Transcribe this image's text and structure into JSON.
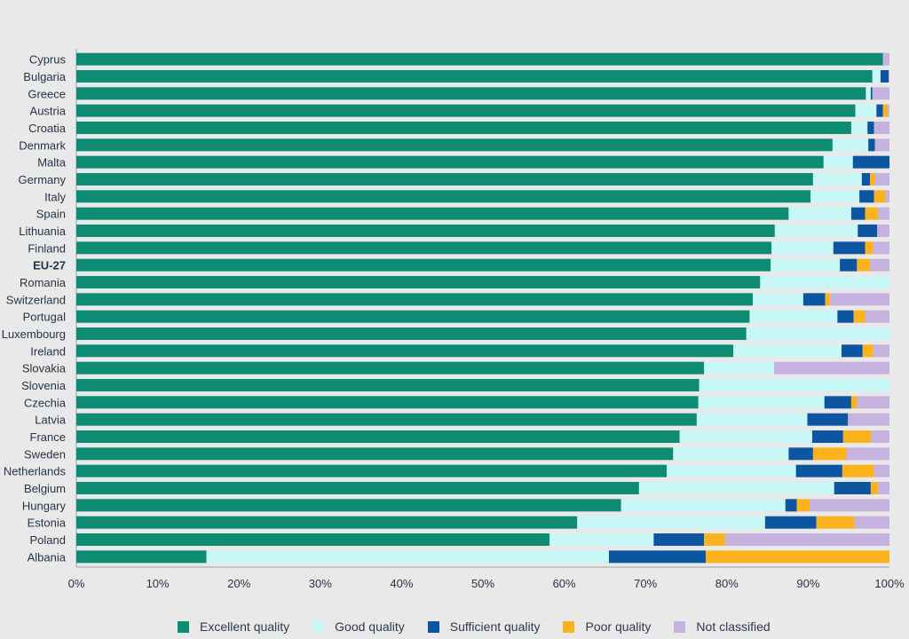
{
  "chart_data": {
    "type": "bar",
    "orientation": "horizontal",
    "stacked": true,
    "xlim": [
      0,
      100
    ],
    "xticks": [
      "0%",
      "10%",
      "20%",
      "30%",
      "40%",
      "50%",
      "60%",
      "70%",
      "80%",
      "90%",
      "100%"
    ],
    "categories": [
      "Cyprus",
      "Bulgaria",
      "Greece",
      "Austria",
      "Croatia",
      "Denmark",
      "Malta",
      "Germany",
      "Italy",
      "Spain",
      "Lithuania",
      "Finland",
      "EU-27",
      "Romania",
      "Switzerland",
      "Portugal",
      "Luxembourg",
      "Ireland",
      "Slovakia",
      "Slovenia",
      "Czechia",
      "Latvia",
      "France",
      "Sweden",
      "Netherlands",
      "Belgium",
      "Hungary",
      "Estonia",
      "Poland",
      "Albania"
    ],
    "bold_categories": [
      "EU-27"
    ],
    "legend_position": "bottom",
    "grid": false,
    "series": [
      {
        "name": "Excellent quality",
        "color": "#0e8b73",
        "values": [
          99.2,
          97.9,
          97.1,
          95.8,
          95.3,
          93.0,
          91.9,
          90.6,
          90.3,
          87.6,
          85.9,
          85.5,
          85.4,
          84.1,
          83.2,
          82.8,
          82.4,
          80.8,
          77.2,
          76.6,
          76.5,
          76.3,
          74.2,
          73.4,
          72.6,
          69.2,
          67.0,
          61.6,
          58.2,
          16.0
        ]
      },
      {
        "name": "Good quality",
        "color": "#c8f7f8",
        "values": [
          0,
          1.0,
          0.6,
          2.6,
          2.0,
          4.4,
          3.6,
          6.0,
          6.0,
          7.7,
          10.2,
          7.6,
          8.5,
          15.9,
          6.2,
          10.8,
          17.6,
          13.3,
          8.6,
          23.4,
          15.5,
          13.6,
          16.3,
          14.2,
          15.9,
          24.0,
          20.2,
          23.1,
          12.8,
          49.5
        ]
      },
      {
        "name": "Sufficient quality",
        "color": "#0c55a0",
        "values": [
          0,
          1.0,
          0.2,
          0.8,
          0.8,
          0.8,
          4.5,
          1.0,
          1.8,
          1.7,
          2.4,
          3.9,
          2.1,
          0,
          2.7,
          2.0,
          0,
          2.6,
          0,
          0,
          3.3,
          5.0,
          3.8,
          3.0,
          5.7,
          4.5,
          1.4,
          6.3,
          6.2,
          11.9
        ]
      },
      {
        "name": "Poor quality",
        "color": "#fbb31d",
        "values": [
          0,
          0,
          0,
          0.6,
          0,
          0,
          0,
          0.6,
          1.4,
          1.6,
          0,
          1.0,
          1.6,
          0,
          0.6,
          1.4,
          0,
          1.3,
          0,
          0,
          0.7,
          0,
          3.4,
          4.1,
          3.9,
          0.9,
          1.6,
          4.7,
          2.6,
          22.6
        ]
      },
      {
        "name": "Not classified",
        "color": "#c6b2de",
        "values": [
          0.8,
          0.1,
          2.1,
          0.2,
          1.9,
          1.8,
          0,
          1.8,
          0.5,
          1.4,
          1.5,
          2.0,
          2.4,
          0,
          7.3,
          3.0,
          0,
          2.0,
          14.2,
          0,
          4.0,
          5.1,
          2.3,
          5.3,
          1.9,
          1.4,
          9.8,
          4.3,
          20.2,
          0
        ]
      }
    ]
  }
}
